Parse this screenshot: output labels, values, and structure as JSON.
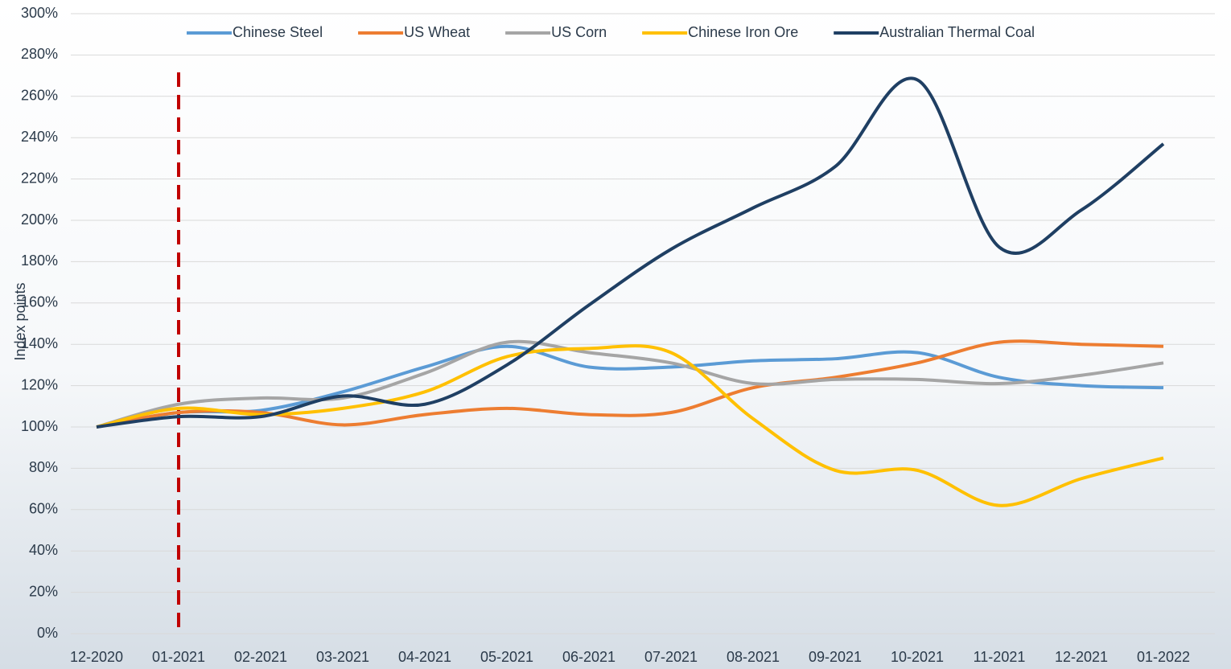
{
  "chart_data": {
    "type": "line",
    "y_label": "Index points",
    "categories": [
      "12-2020",
      "01-2021",
      "02-2021",
      "03-2021",
      "04-2021",
      "05-2021",
      "06-2021",
      "07-2021",
      "08-2021",
      "09-2021",
      "10-2021",
      "11-2021",
      "12-2021",
      "01-2022"
    ],
    "series": [
      {
        "name": "Chinese Steel",
        "color": "#5b9bd5",
        "values": [
          100,
          107,
          108,
          117,
          129,
          139,
          129,
          129,
          132,
          133,
          136,
          124,
          120,
          119
        ]
      },
      {
        "name": "US Wheat",
        "color": "#ed7d31",
        "values": [
          100,
          107,
          107,
          101,
          106,
          109,
          106,
          107,
          119,
          124,
          131,
          141,
          140,
          139
        ]
      },
      {
        "name": "US Corn",
        "color": "#a5a5a5",
        "values": [
          100,
          111,
          114,
          114,
          126,
          141,
          136,
          131,
          121,
          123,
          123,
          121,
          125,
          131
        ]
      },
      {
        "name": "Chinese Iron Ore",
        "color": "#ffc000",
        "values": [
          100,
          109,
          106,
          109,
          117,
          134,
          138,
          136,
          104,
          79,
          79,
          62,
          75,
          85
        ]
      },
      {
        "name": "Australian Thermal Coal",
        "color": "#1f3f63",
        "values": [
          100,
          105,
          105,
          115,
          111,
          130,
          159,
          186,
          206,
          226,
          268,
          187,
          205,
          237
        ]
      }
    ],
    "ylim": [
      0,
      300
    ],
    "yticks": [
      {
        "value": 0,
        "label": "0%"
      },
      {
        "value": 20,
        "label": "20%"
      },
      {
        "value": 40,
        "label": "40%"
      },
      {
        "value": 60,
        "label": "60%"
      },
      {
        "value": 80,
        "label": "80%"
      },
      {
        "value": 100,
        "label": "100%"
      },
      {
        "value": 120,
        "label": "120%"
      },
      {
        "value": 140,
        "label": "140%"
      },
      {
        "value": 160,
        "label": "160%"
      },
      {
        "value": 180,
        "label": "180%"
      },
      {
        "value": 200,
        "label": "200%"
      },
      {
        "value": 220,
        "label": "220%"
      },
      {
        "value": 240,
        "label": "240%"
      },
      {
        "value": 260,
        "label": "260%"
      },
      {
        "value": 280,
        "label": "280%"
      },
      {
        "value": 300,
        "label": "300%"
      }
    ],
    "grid": true,
    "legend": "top"
  }
}
